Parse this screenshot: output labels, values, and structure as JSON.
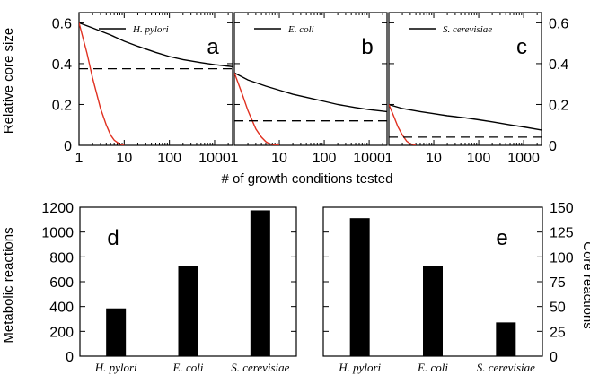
{
  "figure": {
    "xlabel_top": "# of growth conditions tested",
    "ylabel_top": "Relative core size",
    "ylabel_bottom_left": "Metabolic reactions",
    "ylabel_bottom_right": "Core reactions"
  },
  "chart_data": [
    {
      "panel": "a",
      "type": "line",
      "legend": "H. pylori",
      "xscale": "log",
      "xlim": [
        1,
        2500
      ],
      "ylim": [
        0,
        0.65
      ],
      "xticks": [
        "1",
        "10",
        "100",
        "1000"
      ],
      "yticks": [
        "0",
        "0.2",
        "0.4",
        "0.6"
      ],
      "series": [
        {
          "name": "H. pylori",
          "style": "solid",
          "color": "#000000",
          "x": [
            1,
            2,
            5,
            10,
            20,
            50,
            100,
            200,
            500,
            1000,
            2500
          ],
          "y": [
            0.6,
            0.575,
            0.54,
            0.51,
            0.485,
            0.455,
            0.435,
            0.42,
            0.405,
            0.395,
            0.385
          ]
        },
        {
          "style": "solid",
          "color": "#e03020",
          "x": [
            1,
            1.5,
            2,
            3,
            4,
            5,
            6,
            8,
            10
          ],
          "y": [
            0.6,
            0.45,
            0.33,
            0.18,
            0.1,
            0.05,
            0.025,
            0.006,
            0
          ]
        },
        {
          "style": "dashed",
          "color": "#000000",
          "x": [
            1,
            2500
          ],
          "y": [
            0.375,
            0.375
          ]
        }
      ]
    },
    {
      "panel": "b",
      "type": "line",
      "legend": "E. coli",
      "xscale": "log",
      "xlim": [
        1,
        2500
      ],
      "ylim": [
        0,
        0.65
      ],
      "xticks": [
        "1",
        "10",
        "100",
        "1000"
      ],
      "yticks": [
        "0",
        "0.2",
        "0.4",
        "0.6"
      ],
      "series": [
        {
          "name": "E. coli",
          "style": "solid",
          "color": "#000000",
          "x": [
            1,
            2,
            5,
            10,
            20,
            50,
            100,
            200,
            500,
            1000,
            2500
          ],
          "y": [
            0.355,
            0.32,
            0.29,
            0.27,
            0.25,
            0.23,
            0.215,
            0.2,
            0.185,
            0.175,
            0.165
          ]
        },
        {
          "style": "solid",
          "color": "#e03020",
          "x": [
            1,
            1.5,
            2,
            3,
            4,
            5,
            6,
            8,
            10
          ],
          "y": [
            0.355,
            0.25,
            0.17,
            0.08,
            0.04,
            0.018,
            0.008,
            0.002,
            0
          ]
        },
        {
          "style": "dashed",
          "color": "#000000",
          "x": [
            1,
            2500
          ],
          "y": [
            0.12,
            0.12
          ]
        }
      ]
    },
    {
      "panel": "c",
      "type": "line",
      "legend": "S. cerevisiae",
      "xscale": "log",
      "xlim": [
        1,
        2500
      ],
      "ylim": [
        0,
        0.65
      ],
      "xticks": [
        "1",
        "10",
        "100",
        "1000"
      ],
      "yticks": [
        "0",
        "0.2",
        "0.4",
        "0.6"
      ],
      "series": [
        {
          "name": "S. cerevisiae",
          "style": "solid",
          "color": "#000000",
          "x": [
            1,
            2,
            5,
            10,
            20,
            50,
            100,
            200,
            500,
            1000,
            2500
          ],
          "y": [
            0.2,
            0.18,
            0.165,
            0.155,
            0.145,
            0.135,
            0.125,
            0.115,
            0.1,
            0.09,
            0.075
          ]
        },
        {
          "style": "solid",
          "color": "#e03020",
          "x": [
            1,
            1.3,
            1.6,
            2,
            2.5,
            3,
            4
          ],
          "y": [
            0.2,
            0.14,
            0.09,
            0.05,
            0.02,
            0.008,
            0
          ]
        },
        {
          "style": "dashed",
          "color": "#000000",
          "x": [
            1,
            2500
          ],
          "y": [
            0.04,
            0.04
          ]
        }
      ]
    },
    {
      "panel": "d",
      "type": "bar",
      "categories": [
        "H. pylori",
        "E. coli",
        "S. cerevisiae"
      ],
      "values": [
        385,
        730,
        1175
      ],
      "ylim": [
        0,
        1200
      ],
      "yticks": [
        "0",
        "200",
        "400",
        "600",
        "800",
        "1000",
        "1200"
      ]
    },
    {
      "panel": "e",
      "type": "bar",
      "categories": [
        "H. pylori",
        "E. coli",
        "S. cerevisiae"
      ],
      "values": [
        139,
        91,
        34
      ],
      "ylim": [
        0,
        150
      ],
      "yticks": [
        "0",
        "25",
        "50",
        "75",
        "100",
        "125",
        "150"
      ]
    }
  ]
}
